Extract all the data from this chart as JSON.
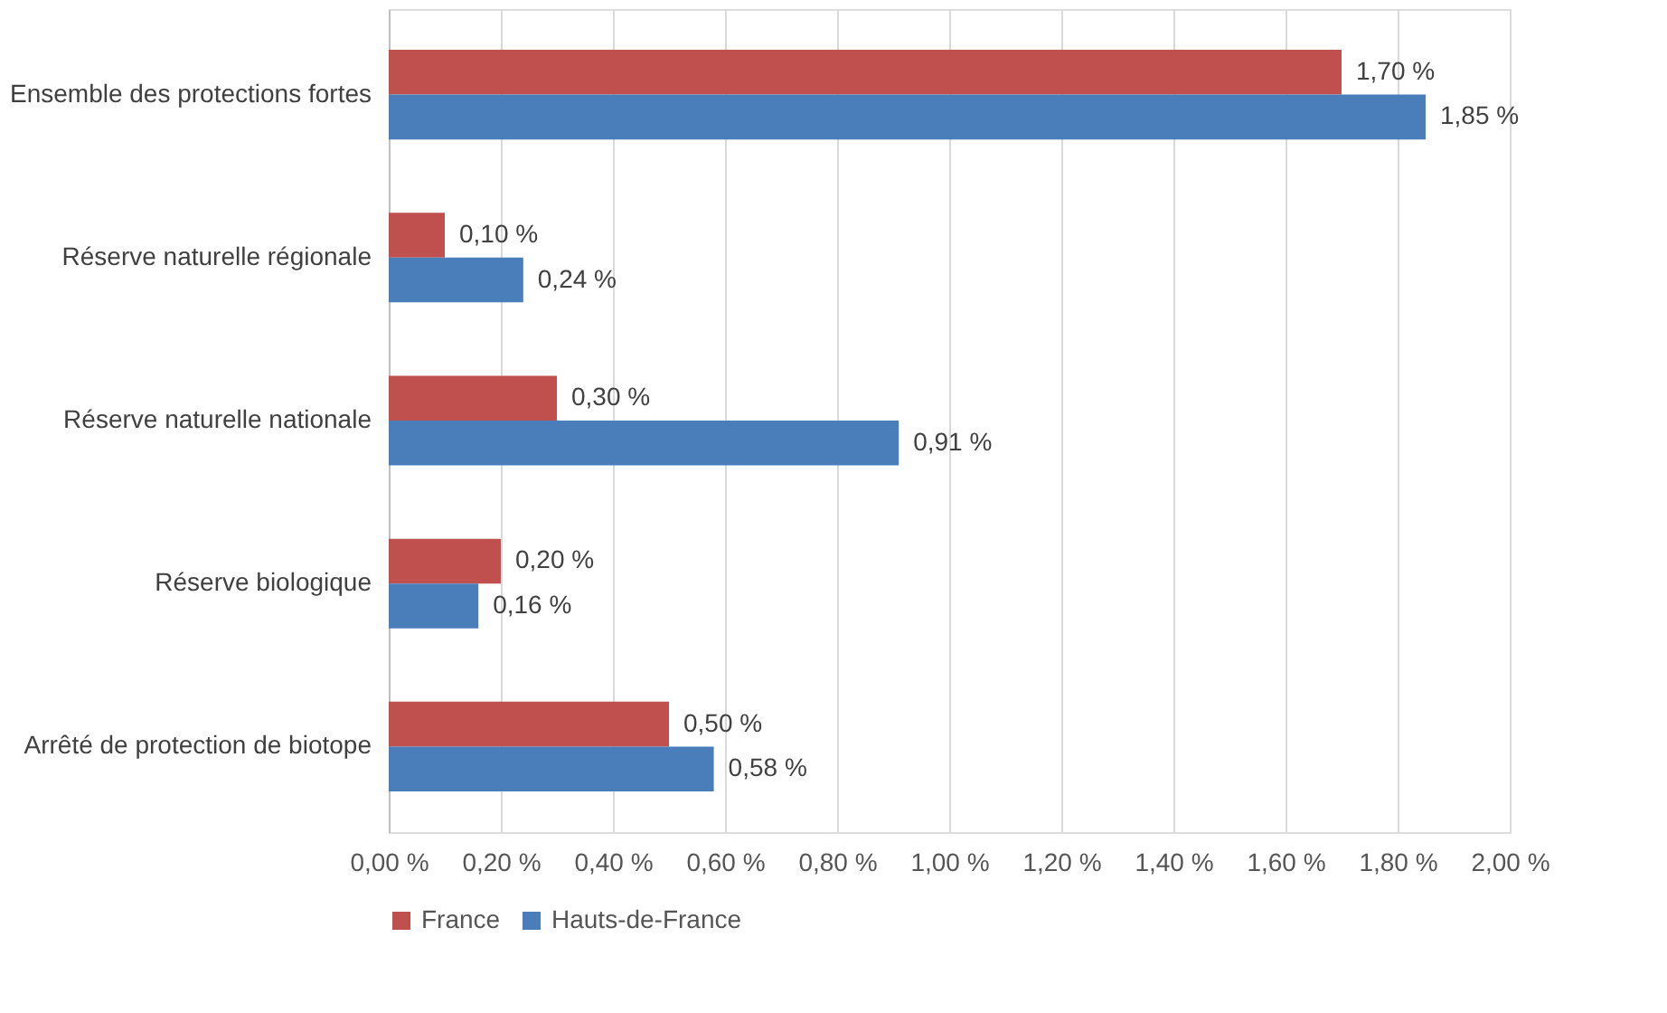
{
  "chart_data": {
    "type": "bar",
    "orientation": "horizontal",
    "categories": [
      "Ensemble des protections fortes",
      "Réserve naturelle régionale",
      "Réserve naturelle nationale",
      "Réserve biologique",
      "Arrêté de protection de biotope"
    ],
    "series": [
      {
        "name": "France",
        "color": "#c0504d",
        "values": [
          1.7,
          0.1,
          0.3,
          0.2,
          0.5
        ],
        "value_labels": [
          "1,70 %",
          "0,10 %",
          "0,30 %",
          "0,20 %",
          "0,50 %"
        ]
      },
      {
        "name": "Hauts-de-France",
        "color": "#4a7ebb",
        "values": [
          1.85,
          0.24,
          0.91,
          0.16,
          0.58
        ],
        "value_labels": [
          "1,85 %",
          "0,24 %",
          "0,91 %",
          "0,16 %",
          "0,58 %"
        ]
      }
    ],
    "xlim": [
      0,
      2
    ],
    "xticks": [
      {
        "value": 0,
        "label": "0,00 %"
      },
      {
        "value": 0.2,
        "label": "0,20 %"
      },
      {
        "value": 0.4,
        "label": "0,40 %"
      },
      {
        "value": 0.6,
        "label": "0,60 %"
      },
      {
        "value": 0.8,
        "label": "0,80 %"
      },
      {
        "value": 1.0,
        "label": "1,00 %"
      },
      {
        "value": 1.2,
        "label": "1,20 %"
      },
      {
        "value": 1.4,
        "label": "1,40 %"
      },
      {
        "value": 1.6,
        "label": "1,60 %"
      },
      {
        "value": 1.8,
        "label": "1,80 %"
      },
      {
        "value": 2.0,
        "label": "2,00 %"
      }
    ],
    "grid": "x",
    "legend": "bottom"
  }
}
